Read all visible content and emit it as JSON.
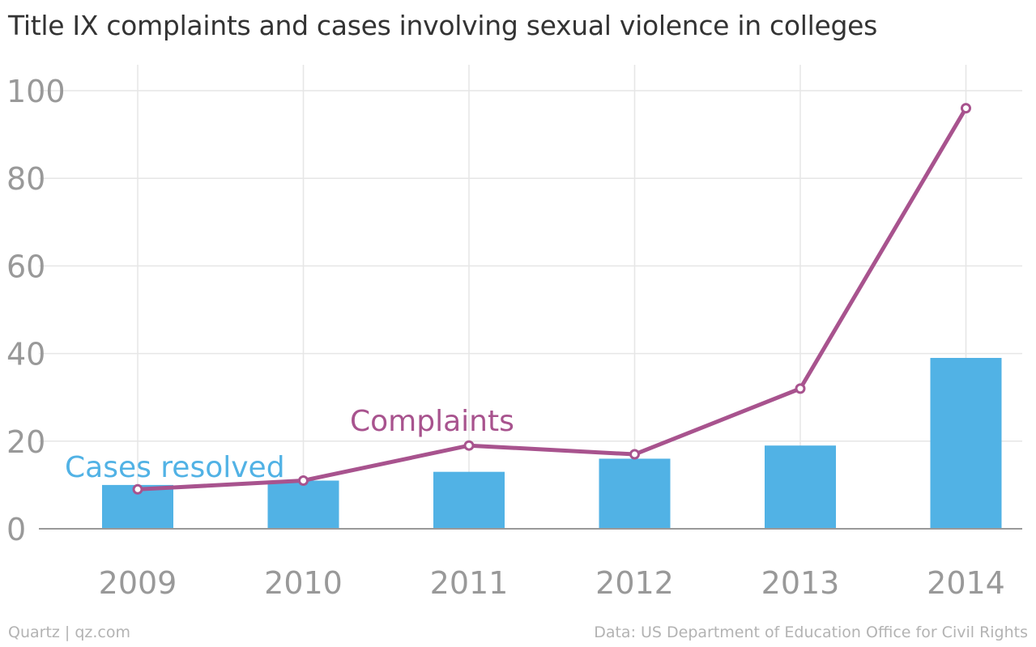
{
  "chart_data": {
    "title": "Title IX complaints and cases involving sexual violence in colleges",
    "categories": [
      "2009",
      "2010",
      "2011",
      "2012",
      "2013",
      "2014"
    ],
    "series": [
      {
        "name": "Cases resolved",
        "type": "bar",
        "values": [
          10,
          11,
          13,
          16,
          19,
          39
        ],
        "color": "#51b2e5"
      },
      {
        "name": "Complaints",
        "type": "line",
        "values": [
          9,
          11,
          19,
          17,
          32,
          96
        ],
        "color": "#a8538e"
      }
    ],
    "ylim": [
      0,
      100
    ],
    "yticks": [
      0,
      20,
      40,
      60,
      80,
      100
    ],
    "grid": true,
    "source": "Data: US Department of Education Office for Civil Rights",
    "credit": "Quartz | qz.com"
  }
}
